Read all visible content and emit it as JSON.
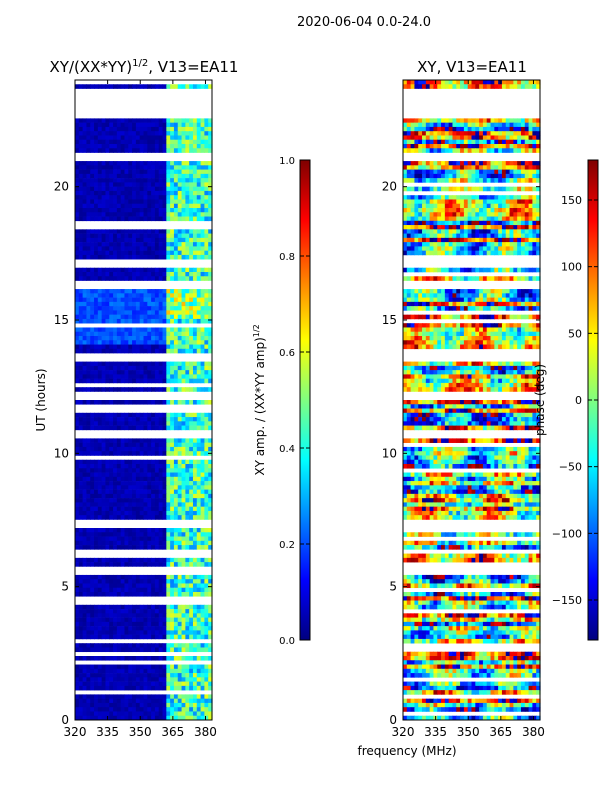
{
  "suptitle": "2020-06-04 0.0-24.0",
  "xlabel_common": "frequency (MHz)",
  "colormap": [
    "#00007f",
    "#0000ff",
    "#0080ff",
    "#00ffff",
    "#80ff80",
    "#ffff00",
    "#ff8000",
    "#ff0000",
    "#7f0000"
  ],
  "mask_color": "#ffffff",
  "chart_data": [
    {
      "type": "heatmap",
      "title_main": "XY/(XX*YY)",
      "title_exp": "1/2",
      "title_suffix": ", V13=EA11",
      "ylabel": "UT (hours)",
      "xlim": [
        320,
        383
      ],
      "ylim": [
        0,
        24
      ],
      "xticks": [
        320,
        335,
        350,
        365,
        380
      ],
      "yticks": [
        0,
        5,
        10,
        15,
        20
      ],
      "colorbar": {
        "label_main": "XY amp. / (XX*YY amp)",
        "label_exp": "1/2",
        "range": [
          0.0,
          1.0
        ],
        "ticks": [
          "0.0",
          "0.2",
          "0.4",
          "0.6",
          "0.8",
          "1.0"
        ],
        "tick_values": [
          0.0,
          0.2,
          0.4,
          0.6,
          0.8,
          1.0
        ]
      },
      "blank_time_ranges": [
        [
          22.5,
          23.7
        ],
        [
          17.0,
          17.3
        ],
        [
          16.2,
          16.5
        ],
        [
          13.4,
          13.7
        ],
        [
          10.6,
          10.8
        ],
        [
          7.2,
          7.5
        ],
        [
          5.5,
          5.7
        ]
      ],
      "value_description": "mostly near 0 across 320-362 MHz; values 0.3-0.6 in channels 362-383 MHz"
    },
    {
      "type": "heatmap",
      "title": "XY, V13=EA11",
      "ylabel": "",
      "xlim": [
        320,
        383
      ],
      "ylim": [
        0,
        24
      ],
      "xticks": [
        320,
        335,
        350,
        365,
        380
      ],
      "yticks": [
        0,
        5,
        10,
        15,
        20
      ],
      "colorbar": {
        "label": "phase (deg)",
        "range": [
          -180,
          180
        ],
        "ticks": [
          "150",
          "100",
          "50",
          "0",
          "−50",
          "−100",
          "−150"
        ],
        "tick_values": [
          150,
          100,
          50,
          0,
          -50,
          -100,
          -150
        ]
      },
      "blank_time_ranges": [
        [
          22.5,
          23.7
        ],
        [
          17.0,
          17.3
        ],
        [
          16.2,
          16.5
        ],
        [
          13.4,
          13.7
        ],
        [
          10.6,
          10.8
        ],
        [
          7.2,
          7.5
        ],
        [
          5.5,
          5.7
        ]
      ],
      "value_description": "phase spans the full -180 to 180 deg range with banded structure in time"
    }
  ]
}
